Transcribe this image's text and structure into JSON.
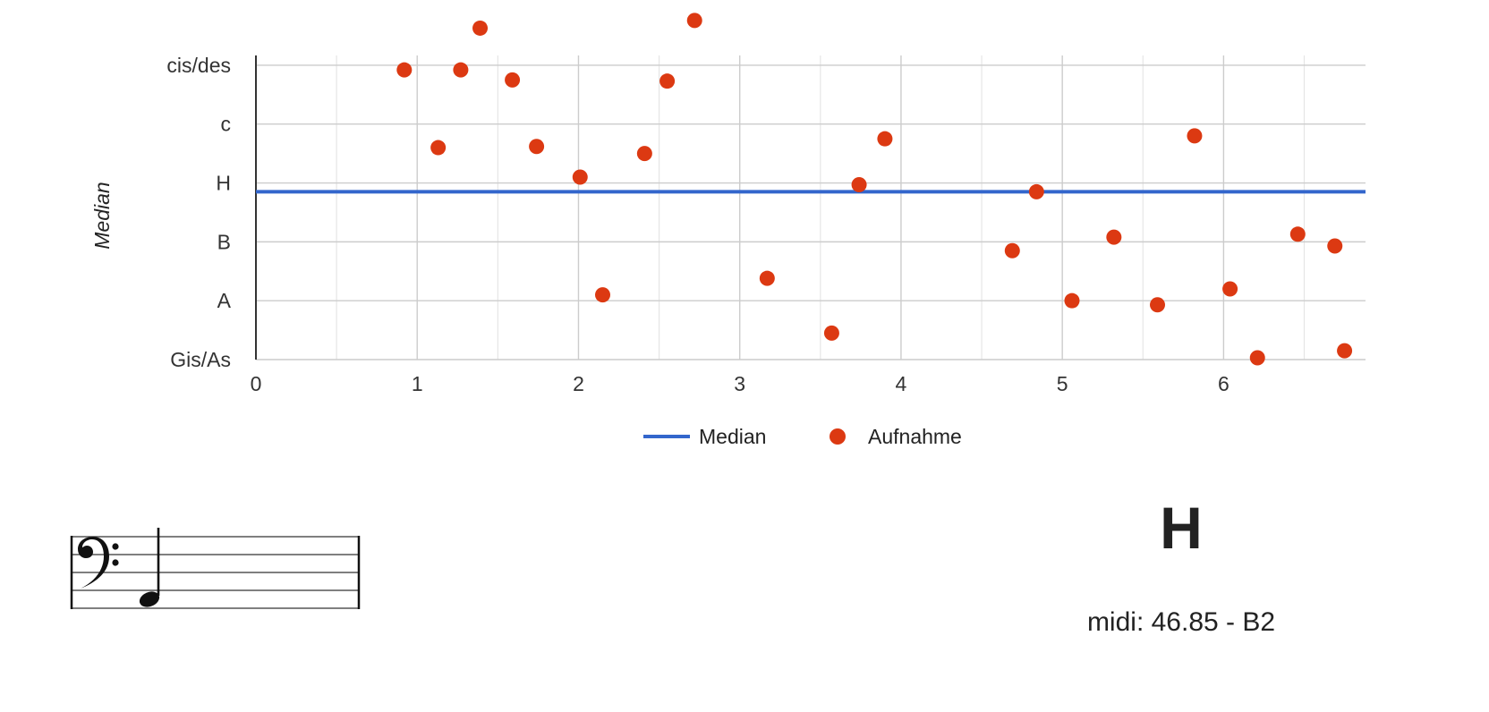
{
  "chart_data": {
    "type": "scatter",
    "title": "",
    "xlabel": "",
    "ylabel": "Median",
    "xlim": [
      0,
      6.88
    ],
    "ylim": [
      0,
      5.5
    ],
    "x_ticks": [
      {
        "value": 0,
        "label": "0"
      },
      {
        "value": 1,
        "label": "1"
      },
      {
        "value": 2,
        "label": "2"
      },
      {
        "value": 3,
        "label": "3"
      },
      {
        "value": 4,
        "label": "4"
      },
      {
        "value": 5,
        "label": "5"
      },
      {
        "value": 6,
        "label": "6"
      }
    ],
    "x_minor_ticks": [
      0.5,
      1.5,
      2.5,
      3.5,
      4.5,
      5.5,
      6.5
    ],
    "y_ticks": [
      {
        "value": 0,
        "label": "Gis/As"
      },
      {
        "value": 1,
        "label": "A"
      },
      {
        "value": 2,
        "label": "B"
      },
      {
        "value": 3,
        "label": "H"
      },
      {
        "value": 4,
        "label": "c"
      },
      {
        "value": 5,
        "label": "cis/des"
      }
    ],
    "grid": true,
    "legend_position": "bottom",
    "series": [
      {
        "name": "Median",
        "kind": "line",
        "color": "#3366cc",
        "x": [
          0,
          6.88
        ],
        "y": [
          2.85,
          2.85
        ]
      },
      {
        "name": "Aufnahme",
        "kind": "scatter",
        "color": "#dc3912",
        "points": [
          [
            0.92,
            4.92
          ],
          [
            1.13,
            3.6
          ],
          [
            1.27,
            4.92
          ],
          [
            1.39,
            5.63
          ],
          [
            1.59,
            4.75
          ],
          [
            1.74,
            3.62
          ],
          [
            2.01,
            3.1
          ],
          [
            2.15,
            1.1
          ],
          [
            2.41,
            3.5
          ],
          [
            2.55,
            4.73
          ],
          [
            2.72,
            5.76
          ],
          [
            3.17,
            1.38
          ],
          [
            3.57,
            0.45
          ],
          [
            3.74,
            2.97
          ],
          [
            3.9,
            3.75
          ],
          [
            4.69,
            1.85
          ],
          [
            4.84,
            2.85
          ],
          [
            5.06,
            1.0
          ],
          [
            5.32,
            2.08
          ],
          [
            5.59,
            0.93
          ],
          [
            5.82,
            3.8
          ],
          [
            6.04,
            1.2
          ],
          [
            6.21,
            0.03
          ],
          [
            6.46,
            2.13
          ],
          [
            6.69,
            1.93
          ],
          [
            6.75,
            0.15
          ]
        ]
      }
    ]
  },
  "note_display": {
    "name": "H",
    "midi_text": "midi: 46.85 - B2"
  },
  "staff": {
    "clef_icon": "bass-clef-icon",
    "note_icon": "quarter-note-icon"
  }
}
